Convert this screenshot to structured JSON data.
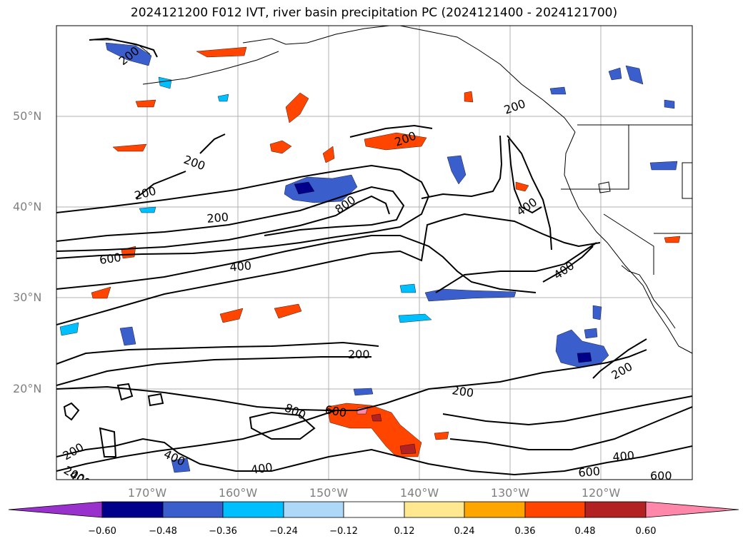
{
  "title": "2024121200 F012 IVT, river basin precipitation PC (2024121400 - 2024121700)",
  "map": {
    "lat_labels": [
      "50°N",
      "40°N",
      "30°N",
      "20°N"
    ],
    "lon_labels": [
      "170°W",
      "160°W",
      "150°W",
      "140°W",
      "130°W",
      "120°W"
    ],
    "contour_levels": [
      200,
      400,
      600,
      800
    ],
    "contour_labels": [
      "200",
      "200",
      "200",
      "200",
      "200",
      "200",
      "200",
      "200",
      "200",
      "200",
      "200",
      "400",
      "400",
      "400",
      "400",
      "400",
      "400",
      "400",
      "600",
      "600",
      "600",
      "600",
      "800",
      "800"
    ],
    "colors": {
      "contour": "#000000",
      "gridline": "#b0b0b0",
      "coastline": "#000000"
    }
  },
  "colorbar": {
    "ticks": [
      "−0.60",
      "−0.48",
      "−0.36",
      "−0.24",
      "−0.12",
      "0.12",
      "0.24",
      "0.36",
      "0.48",
      "0.60"
    ],
    "colors": [
      "#9932cc",
      "#00008b",
      "#3a5fcd",
      "#00bfff",
      "#add8f7",
      "#ffffff",
      "#ffe88f",
      "#ffa500",
      "#ff4500",
      "#b22222",
      "#ff88aa"
    ]
  }
}
